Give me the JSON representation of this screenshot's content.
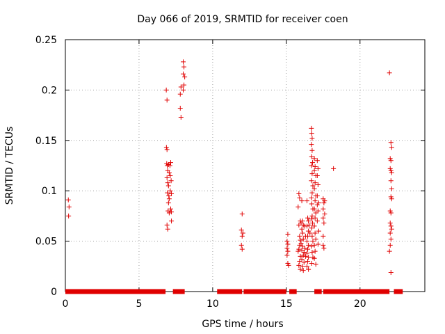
{
  "chart_data": {
    "type": "scatter",
    "title": "Day 066 of 2019, SRMTID for receiver coen",
    "xlabel": "GPS time / hours",
    "ylabel": "SRMTID / TECUs",
    "xlim": [
      0,
      24.4
    ],
    "ylim": [
      0,
      0.25
    ],
    "xticks": [
      0,
      5,
      10,
      15,
      20
    ],
    "xtick_labels": [
      "0",
      "5",
      "10",
      "15",
      "20"
    ],
    "yticks": [
      0,
      0.05,
      0.1,
      0.15,
      0.2,
      0.25
    ],
    "ytick_labels": [
      "0",
      "0.05",
      "0.1",
      "0.15",
      "0.2",
      "0.25"
    ],
    "grid": true,
    "marker": "+",
    "color": "#e00000",
    "zero_bands": [
      [
        0.0,
        6.8
      ],
      [
        7.3,
        8.1
      ],
      [
        10.3,
        12.0
      ],
      [
        12.1,
        15.0
      ],
      [
        15.2,
        15.7
      ],
      [
        16.9,
        17.4
      ],
      [
        17.5,
        22.0
      ],
      [
        22.3,
        22.9
      ]
    ],
    "series": [
      {
        "name": "SRMTID",
        "points": [
          [
            0.2,
            0.091
          ],
          [
            0.25,
            0.084
          ],
          [
            0.22,
            0.075
          ],
          [
            6.85,
            0.2
          ],
          [
            6.9,
            0.19
          ],
          [
            6.86,
            0.143
          ],
          [
            6.9,
            0.141
          ],
          [
            6.88,
            0.127
          ],
          [
            6.92,
            0.125
          ],
          [
            6.95,
            0.12
          ],
          [
            7.0,
            0.126
          ],
          [
            6.9,
            0.113
          ],
          [
            6.95,
            0.108
          ],
          [
            7.0,
            0.105
          ],
          [
            6.92,
            0.098
          ],
          [
            7.02,
            0.095
          ],
          [
            7.05,
            0.092
          ],
          [
            6.97,
            0.08
          ],
          [
            7.05,
            0.078
          ],
          [
            6.9,
            0.066
          ],
          [
            6.95,
            0.062
          ],
          [
            7.1,
            0.125
          ],
          [
            7.15,
            0.128
          ],
          [
            7.12,
            0.115
          ],
          [
            7.18,
            0.11
          ],
          [
            7.12,
            0.1
          ],
          [
            7.2,
            0.097
          ],
          [
            7.15,
            0.082
          ],
          [
            7.2,
            0.079
          ],
          [
            7.2,
            0.07
          ],
          [
            7.0,
            0.088
          ],
          [
            7.05,
            0.118
          ],
          [
            7.8,
            0.196
          ],
          [
            7.85,
            0.203
          ],
          [
            7.8,
            0.182
          ],
          [
            7.85,
            0.173
          ],
          [
            8.0,
            0.228
          ],
          [
            8.05,
            0.223
          ],
          [
            8.0,
            0.216
          ],
          [
            8.1,
            0.213
          ],
          [
            8.05,
            0.205
          ],
          [
            8.0,
            0.2
          ],
          [
            12.0,
            0.077
          ],
          [
            11.95,
            0.061
          ],
          [
            12.05,
            0.058
          ],
          [
            12.0,
            0.055
          ],
          [
            11.95,
            0.046
          ],
          [
            12.0,
            0.042
          ],
          [
            15.1,
            0.057
          ],
          [
            15.05,
            0.05
          ],
          [
            15.1,
            0.047
          ],
          [
            15.05,
            0.043
          ],
          [
            15.1,
            0.04
          ],
          [
            15.05,
            0.036
          ],
          [
            15.1,
            0.028
          ],
          [
            15.15,
            0.026
          ],
          [
            15.85,
            0.097
          ],
          [
            15.9,
            0.093
          ],
          [
            15.8,
            0.084
          ],
          [
            15.95,
            0.07
          ],
          [
            15.85,
            0.066
          ],
          [
            15.9,
            0.055
          ],
          [
            15.95,
            0.051
          ],
          [
            15.9,
            0.046
          ],
          [
            15.85,
            0.042
          ],
          [
            15.8,
            0.04
          ],
          [
            15.95,
            0.035
          ],
          [
            15.9,
            0.03
          ],
          [
            15.85,
            0.026
          ],
          [
            15.95,
            0.022
          ],
          [
            16.05,
            0.09
          ],
          [
            16.1,
            0.07
          ],
          [
            16.0,
            0.068
          ],
          [
            16.15,
            0.066
          ],
          [
            16.05,
            0.062
          ],
          [
            16.1,
            0.058
          ],
          [
            16.15,
            0.052
          ],
          [
            16.0,
            0.048
          ],
          [
            16.1,
            0.045
          ],
          [
            16.05,
            0.041
          ],
          [
            16.2,
            0.039
          ],
          [
            16.15,
            0.036
          ],
          [
            16.05,
            0.032
          ],
          [
            16.2,
            0.029
          ],
          [
            16.1,
            0.025
          ],
          [
            16.15,
            0.021
          ],
          [
            16.25,
            0.043
          ],
          [
            16.3,
            0.055
          ],
          [
            16.3,
            0.035
          ],
          [
            16.25,
            0.065
          ],
          [
            16.4,
            0.09
          ],
          [
            16.45,
            0.073
          ],
          [
            16.5,
            0.07
          ],
          [
            16.4,
            0.065
          ],
          [
            16.5,
            0.06
          ],
          [
            16.45,
            0.055
          ],
          [
            16.4,
            0.05
          ],
          [
            16.5,
            0.046
          ],
          [
            16.45,
            0.042
          ],
          [
            16.4,
            0.038
          ],
          [
            16.5,
            0.034
          ],
          [
            16.45,
            0.03
          ],
          [
            16.4,
            0.025
          ],
          [
            16.5,
            0.022
          ],
          [
            16.55,
            0.066
          ],
          [
            16.6,
            0.058
          ],
          [
            16.7,
            0.162
          ],
          [
            16.72,
            0.157
          ],
          [
            16.75,
            0.152
          ],
          [
            16.7,
            0.146
          ],
          [
            16.75,
            0.14
          ],
          [
            16.72,
            0.134
          ],
          [
            16.78,
            0.128
          ],
          [
            16.7,
            0.125
          ],
          [
            16.75,
            0.117
          ],
          [
            16.7,
            0.11
          ],
          [
            16.8,
            0.105
          ],
          [
            16.75,
            0.098
          ],
          [
            16.7,
            0.093
          ],
          [
            16.72,
            0.087
          ],
          [
            16.8,
            0.082
          ],
          [
            16.75,
            0.075
          ],
          [
            16.7,
            0.072
          ],
          [
            16.78,
            0.068
          ],
          [
            16.72,
            0.063
          ],
          [
            16.75,
            0.055
          ],
          [
            16.8,
            0.05
          ],
          [
            16.7,
            0.045
          ],
          [
            16.75,
            0.039
          ],
          [
            16.8,
            0.034
          ],
          [
            16.72,
            0.028
          ],
          [
            16.9,
            0.132
          ],
          [
            16.95,
            0.124
          ],
          [
            16.9,
            0.12
          ],
          [
            17.0,
            0.115
          ],
          [
            16.95,
            0.108
          ],
          [
            16.9,
            0.102
          ],
          [
            17.0,
            0.095
          ],
          [
            16.95,
            0.09
          ],
          [
            16.9,
            0.082
          ],
          [
            17.0,
            0.078
          ],
          [
            16.95,
            0.073
          ],
          [
            16.9,
            0.065
          ],
          [
            16.95,
            0.058
          ],
          [
            17.0,
            0.052
          ],
          [
            16.9,
            0.046
          ],
          [
            16.95,
            0.04
          ],
          [
            16.9,
            0.033
          ],
          [
            17.0,
            0.027
          ],
          [
            17.1,
            0.13
          ],
          [
            17.15,
            0.122
          ],
          [
            17.1,
            0.115
          ],
          [
            17.15,
            0.106
          ],
          [
            17.1,
            0.095
          ],
          [
            17.2,
            0.088
          ],
          [
            17.15,
            0.08
          ],
          [
            17.1,
            0.07
          ],
          [
            17.2,
            0.06
          ],
          [
            17.15,
            0.047
          ],
          [
            17.1,
            0.086
          ],
          [
            17.5,
            0.092
          ],
          [
            17.55,
            0.088
          ],
          [
            17.5,
            0.082
          ],
          [
            17.6,
            0.077
          ],
          [
            17.5,
            0.073
          ],
          [
            17.55,
            0.068
          ],
          [
            17.5,
            0.055
          ],
          [
            17.5,
            0.046
          ],
          [
            17.55,
            0.043
          ],
          [
            17.6,
            0.09
          ],
          [
            18.2,
            0.122
          ],
          [
            22.0,
            0.217
          ],
          [
            22.1,
            0.148
          ],
          [
            22.15,
            0.143
          ],
          [
            22.05,
            0.132
          ],
          [
            22.1,
            0.13
          ],
          [
            22.05,
            0.122
          ],
          [
            22.1,
            0.12
          ],
          [
            22.15,
            0.118
          ],
          [
            22.1,
            0.11
          ],
          [
            22.15,
            0.102
          ],
          [
            22.1,
            0.094
          ],
          [
            22.15,
            0.092
          ],
          [
            22.05,
            0.08
          ],
          [
            22.1,
            0.078
          ],
          [
            22.05,
            0.068
          ],
          [
            22.1,
            0.065
          ],
          [
            22.15,
            0.062
          ],
          [
            22.05,
            0.058
          ],
          [
            22.1,
            0.052
          ],
          [
            22.05,
            0.046
          ],
          [
            22.0,
            0.04
          ],
          [
            22.1,
            0.019
          ]
        ]
      }
    ]
  }
}
